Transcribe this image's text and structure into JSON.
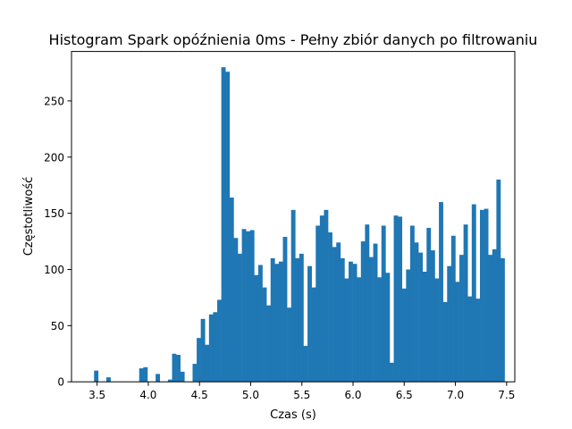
{
  "chart_data": {
    "type": "bar",
    "title": "Histogram Spark opóźnienia 0ms - Pełny zbiór danych po filtrowaniu",
    "xlabel": "Czas (s)",
    "ylabel": "Częstotliwość",
    "xlim": [
      3.25,
      7.58
    ],
    "ylim": [
      0,
      294
    ],
    "xticks": [
      3.5,
      4.0,
      4.5,
      5.0,
      5.5,
      6.0,
      6.5,
      7.0,
      7.5
    ],
    "xtick_labels": [
      "3.5",
      "4.0",
      "4.5",
      "5.0",
      "5.5",
      "6.0",
      "6.5",
      "7.0",
      "7.5"
    ],
    "yticks": [
      0,
      50,
      100,
      150,
      200,
      250
    ],
    "ytick_labels": [
      "0",
      "50",
      "100",
      "150",
      "200",
      "250"
    ],
    "bar_color": "#1f77b4",
    "bins": {
      "start": 3.39,
      "width": 0.0401,
      "counts": [
        0,
        0,
        10,
        0,
        0,
        4,
        0,
        0,
        0,
        0,
        0,
        0,
        0,
        12,
        13,
        0,
        0,
        7,
        0,
        0,
        2,
        25,
        24,
        9,
        0,
        0,
        16,
        39,
        56,
        33,
        60,
        62,
        73,
        280,
        276,
        164,
        128,
        114,
        136,
        134,
        135,
        95,
        104,
        84,
        68,
        110,
        105,
        107,
        129,
        66,
        153,
        110,
        114,
        32,
        103,
        84,
        139,
        148,
        153,
        133,
        120,
        124,
        110,
        92,
        107,
        105,
        93,
        125,
        140,
        111,
        123,
        93,
        139,
        97,
        17,
        148,
        147,
        83,
        100,
        139,
        124,
        115,
        98,
        137,
        117,
        92,
        160,
        71,
        103,
        130,
        89,
        113,
        140,
        76,
        158,
        74,
        153,
        154,
        113,
        118,
        180,
        110
      ]
    }
  }
}
